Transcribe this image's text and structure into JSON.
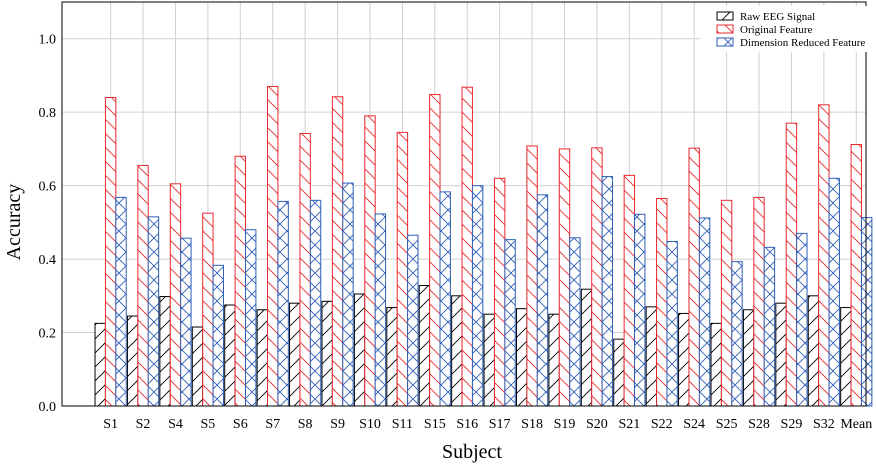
{
  "chart_data": {
    "type": "bar",
    "xlabel": "Subject",
    "ylabel": "Accuracy",
    "ylim": [
      0,
      1.1
    ],
    "yticks": [
      "0.0",
      "0.2",
      "0.4",
      "0.6",
      "0.8",
      "1.0"
    ],
    "grid": true,
    "legend_position": "top-right",
    "categories": [
      "S1",
      "S2",
      "S4",
      "S5",
      "S6",
      "S7",
      "S8",
      "S9",
      "S10",
      "S11",
      "S15",
      "S16",
      "S17",
      "S18",
      "S19",
      "S20",
      "S21",
      "S22",
      "S24",
      "S25",
      "S28",
      "S29",
      "S32",
      "Mean"
    ],
    "series": [
      {
        "name": "Raw EEG Signal",
        "color": "#000000",
        "pattern": "diagonal-hatch",
        "values": [
          0.225,
          0.245,
          0.298,
          0.215,
          0.275,
          0.262,
          0.28,
          0.285,
          0.305,
          0.268,
          0.328,
          0.3,
          0.25,
          0.265,
          0.25,
          0.318,
          0.182,
          0.27,
          0.252,
          0.225,
          0.262,
          0.28,
          0.3,
          0.268
        ]
      },
      {
        "name": "Original Feature",
        "color": "#e8282e",
        "pattern": "back-diagonal-hatch",
        "values": [
          0.84,
          0.655,
          0.605,
          0.525,
          0.68,
          0.87,
          0.742,
          0.842,
          0.79,
          0.745,
          0.848,
          0.868,
          0.62,
          0.708,
          0.7,
          0.703,
          0.628,
          0.565,
          0.702,
          0.56,
          0.568,
          0.77,
          0.82,
          0.712
        ]
      },
      {
        "name": "Dimension Reduced Feature",
        "color": "#2e5fb8",
        "pattern": "cross-hatch",
        "values": [
          0.568,
          0.515,
          0.457,
          0.383,
          0.48,
          0.557,
          0.56,
          0.607,
          0.523,
          0.465,
          0.583,
          0.6,
          0.453,
          0.575,
          0.458,
          0.625,
          0.522,
          0.448,
          0.512,
          0.393,
          0.432,
          0.47,
          0.62,
          0.513
        ]
      }
    ]
  }
}
